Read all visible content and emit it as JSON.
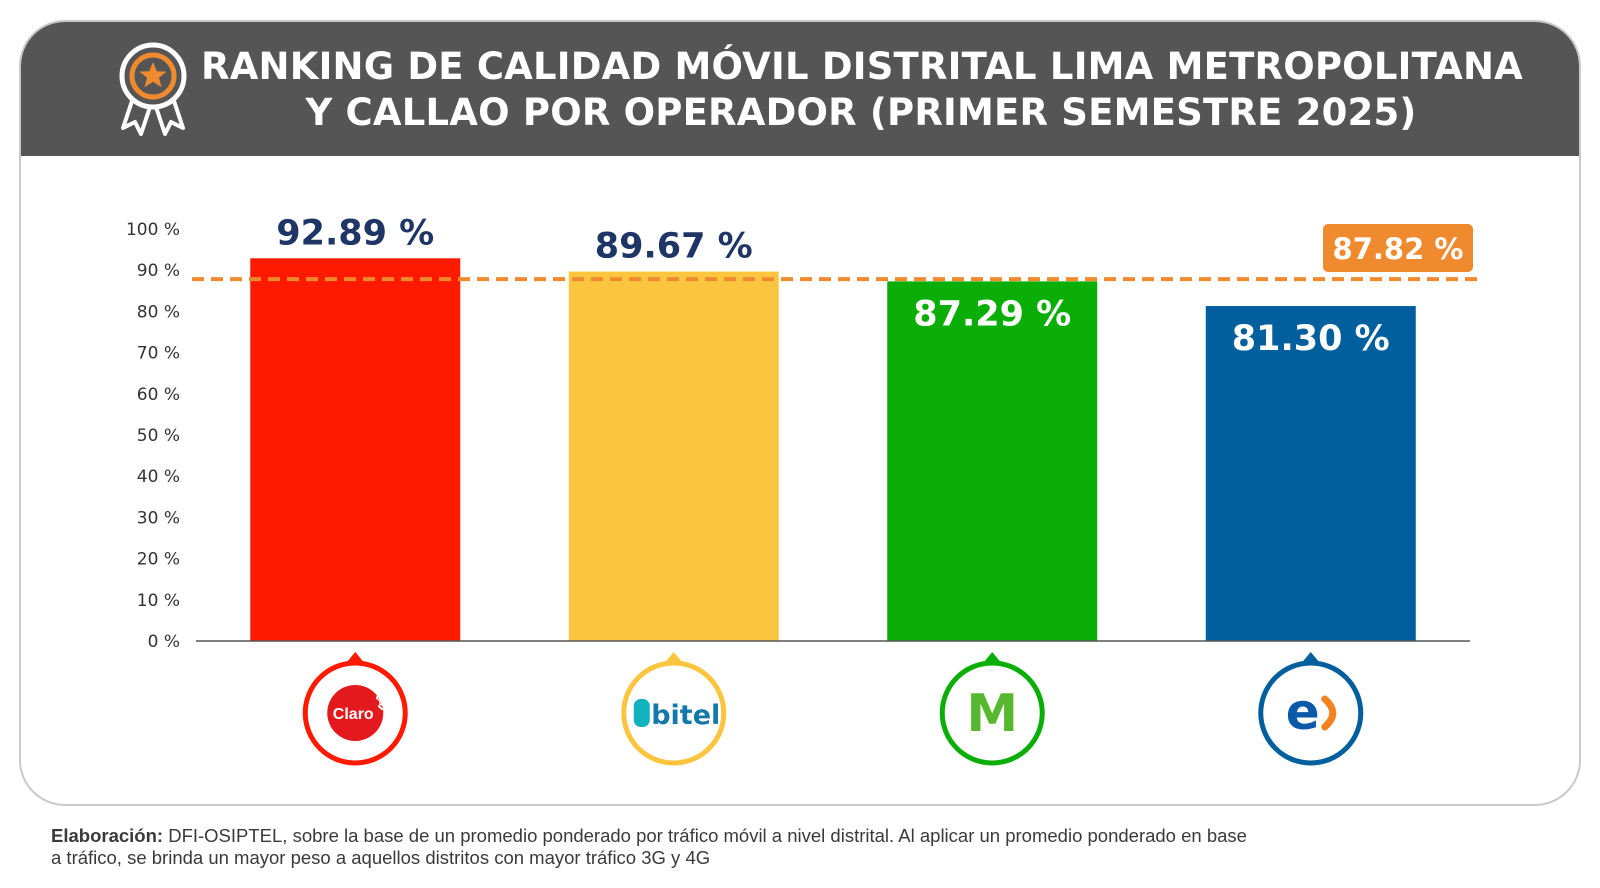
{
  "title": {
    "line1": "RANKING DE CALIDAD MÓVIL DISTRITAL LIMA METROPOLITANA",
    "line2": "Y CALLAO POR OPERADOR (PRIMER SEMESTRE 2025)"
  },
  "icon": "award-ribbon-star-icon",
  "chart_data": {
    "type": "bar",
    "title": "RANKING DE CALIDAD MÓVIL DISTRITAL LIMA METROPOLITANA Y CALLAO POR OPERADOR (PRIMER SEMESTRE 2025)",
    "categories": [
      "Claro",
      "Bitel",
      "Movistar",
      "Entel"
    ],
    "values": [
      92.89,
      89.67,
      87.29,
      81.3
    ],
    "value_labels": [
      "92.89 %",
      "89.67 %",
      "87.29 %",
      "81.30 %"
    ],
    "colors": [
      "#ff1a00",
      "#fcc540",
      "#0bae07",
      "#005f9c"
    ],
    "logo_text": [
      "Claro",
      "bitel",
      "M",
      "e"
    ],
    "ylim": [
      0,
      100
    ],
    "yticks": [
      "0 %",
      "10 %",
      "20 %",
      "30 %",
      "40 %",
      "50 %",
      "60 %",
      "70 %",
      "80 %",
      "90 %",
      "100 %"
    ],
    "reference_line": {
      "value": 87.82,
      "label": "87.82 %",
      "color": "#f08a2e",
      "style": "dashed"
    },
    "label_color_outside": "#1f3566",
    "label_color_inside": "#ffffff",
    "xlabel": "",
    "ylabel": ""
  },
  "footnote": {
    "bold": "Elaboración:",
    "line1": " DFI-OSIPTEL, sobre la base de un promedio ponderado por tráfico móvil a nivel distrital. Al aplicar un promedio ponderado en base",
    "line2": "a tráfico, se brinda un mayor peso a aquellos distritos con mayor tráfico 3G y 4G"
  }
}
